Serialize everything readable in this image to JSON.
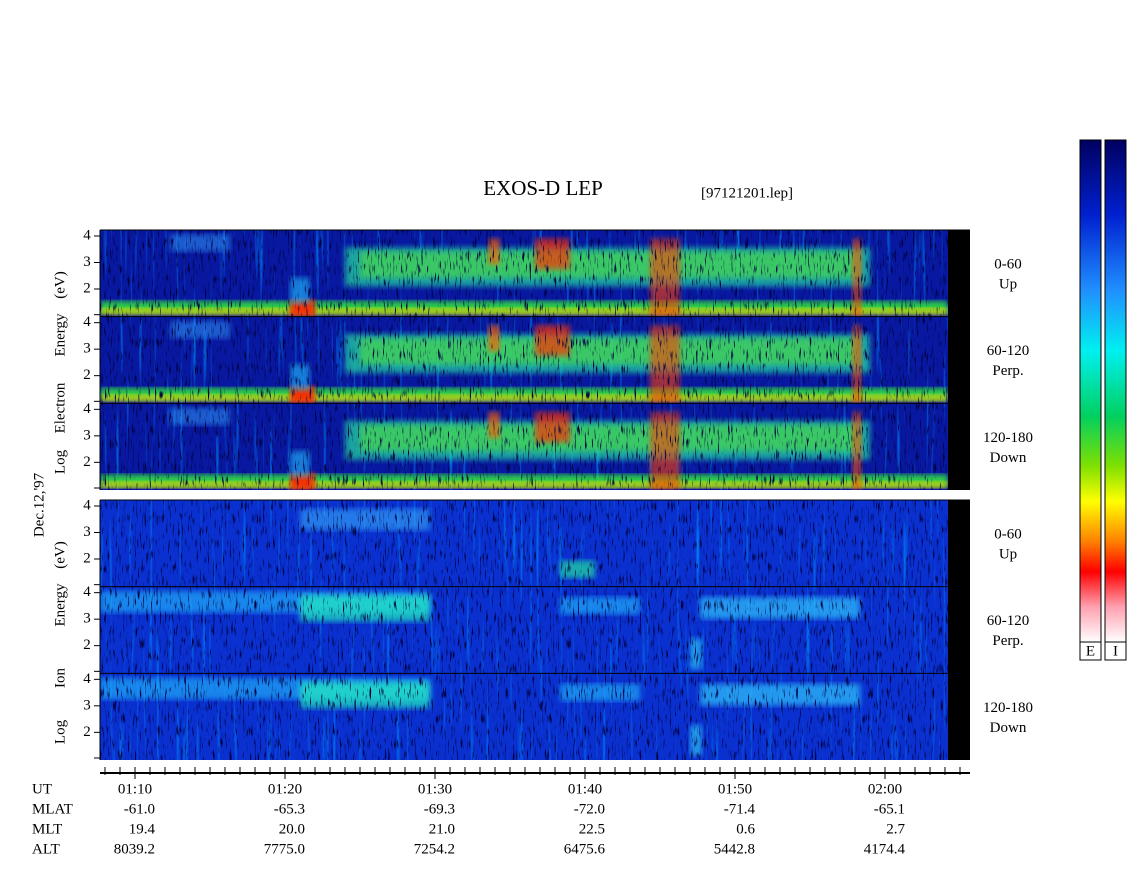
{
  "header": {
    "title": "EXOS-D LEP",
    "file": "[97121201.lep]"
  },
  "date": "Dec.12,'97",
  "groups": [
    {
      "label_words": [
        "Log",
        "Electron",
        "Energy",
        "(eV)"
      ],
      "panels": [
        {
          "pitch": "0-60",
          "direction": "Up",
          "ticks": [
            "4",
            "3",
            "2"
          ]
        },
        {
          "pitch": "60-120",
          "direction": "Perp.",
          "ticks": [
            "4",
            "3",
            "2"
          ]
        },
        {
          "pitch": "120-180",
          "direction": "Down",
          "ticks": [
            "4",
            "3",
            "2"
          ]
        }
      ]
    },
    {
      "label_words": [
        "Log",
        "Ion",
        "Energy",
        "(eV)"
      ],
      "panels": [
        {
          "pitch": "0-60",
          "direction": "Up",
          "ticks": [
            "4",
            "3",
            "2"
          ]
        },
        {
          "pitch": "60-120",
          "direction": "Perp.",
          "ticks": [
            "4",
            "3",
            "2"
          ]
        },
        {
          "pitch": "120-180",
          "direction": "Down",
          "ticks": [
            "4",
            "3",
            "2"
          ]
        }
      ]
    }
  ],
  "time_axis": {
    "rows": [
      {
        "name": "UT",
        "values": [
          "01:10",
          "01:20",
          "01:30",
          "01:40",
          "01:50",
          "02:00"
        ]
      },
      {
        "name": "MLAT",
        "values": [
          "-61.0",
          "-65.3",
          "-69.3",
          "-72.0",
          "-71.4",
          "-65.1"
        ]
      },
      {
        "name": "MLT",
        "values": [
          "19.4",
          "20.0",
          "21.0",
          "22.5",
          "0.6",
          "2.7"
        ]
      },
      {
        "name": "ALT",
        "values": [
          "8039.2",
          "7775.0",
          "7254.2",
          "6475.6",
          "5442.8",
          "4174.4"
        ]
      }
    ]
  },
  "colorbars": [
    "E",
    "I"
  ]
}
